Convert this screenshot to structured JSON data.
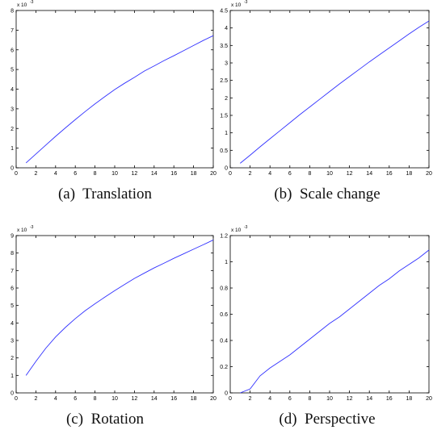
{
  "colors": {
    "line": "#3030ff",
    "axis": "#000000",
    "background": "#ffffff"
  },
  "chart_data": [
    {
      "type": "line",
      "caption": "(a)  Translation",
      "exponent_label": "x 10",
      "exponent_power": "-3",
      "xlim": [
        0,
        20
      ],
      "ylim": [
        0,
        8
      ],
      "xticks": [
        0,
        2,
        4,
        6,
        8,
        10,
        12,
        14,
        16,
        18,
        20
      ],
      "yticks": [
        0,
        1,
        2,
        3,
        4,
        5,
        6,
        7,
        8
      ],
      "grid": false,
      "series": [
        {
          "x": [
            1,
            2,
            3,
            4,
            5,
            6,
            7,
            8,
            9,
            10,
            11,
            12,
            13,
            14,
            15,
            16,
            17,
            18,
            19,
            20
          ],
          "values": [
            0.25,
            0.7,
            1.15,
            1.6,
            2.03,
            2.45,
            2.86,
            3.25,
            3.62,
            3.98,
            4.3,
            4.6,
            4.92,
            5.18,
            5.45,
            5.7,
            5.96,
            6.22,
            6.48,
            6.72
          ]
        }
      ]
    },
    {
      "type": "line",
      "caption": "(b)  Scale change",
      "exponent_label": "x 10",
      "exponent_power": "-3",
      "xlim": [
        0,
        20
      ],
      "ylim": [
        0,
        4.5
      ],
      "xticks": [
        0,
        2,
        4,
        6,
        8,
        10,
        12,
        14,
        16,
        18,
        20
      ],
      "yticks": [
        0,
        0.5,
        1,
        1.5,
        2,
        2.5,
        3,
        3.5,
        4,
        4.5
      ],
      "ytick_labels": [
        "0",
        "0.5",
        "1",
        "1.5",
        "2",
        "2.5",
        "3",
        "3.5",
        "4",
        "4.5"
      ],
      "grid": false,
      "series": [
        {
          "x": [
            1,
            2,
            3,
            4,
            5,
            6,
            7,
            8,
            9,
            10,
            11,
            12,
            13,
            14,
            15,
            16,
            17,
            18,
            19,
            20
          ],
          "values": [
            0.13,
            0.36,
            0.6,
            0.83,
            1.06,
            1.29,
            1.52,
            1.74,
            1.96,
            2.18,
            2.4,
            2.61,
            2.82,
            3.03,
            3.23,
            3.43,
            3.63,
            3.83,
            4.02,
            4.2
          ]
        }
      ]
    },
    {
      "type": "line",
      "caption": "(c)  Rotation",
      "exponent_label": "x 10",
      "exponent_power": "-3",
      "xlim": [
        0,
        20
      ],
      "ylim": [
        0,
        9
      ],
      "xticks": [
        0,
        2,
        4,
        6,
        8,
        10,
        12,
        14,
        16,
        18,
        20
      ],
      "yticks": [
        0,
        1,
        2,
        3,
        4,
        5,
        6,
        7,
        8,
        9
      ],
      "grid": false,
      "series": [
        {
          "x": [
            1,
            2,
            3,
            4,
            5,
            6,
            7,
            8,
            9,
            10,
            11,
            12,
            13,
            14,
            15,
            16,
            17,
            18,
            19,
            20
          ],
          "values": [
            1.0,
            1.8,
            2.55,
            3.2,
            3.75,
            4.25,
            4.7,
            5.1,
            5.48,
            5.85,
            6.2,
            6.55,
            6.85,
            7.15,
            7.42,
            7.7,
            7.96,
            8.22,
            8.48,
            8.75
          ]
        }
      ]
    },
    {
      "type": "line",
      "caption": "(d)  Perspective",
      "exponent_label": "x 10",
      "exponent_power": "-3",
      "xlim": [
        0,
        20
      ],
      "ylim": [
        0,
        1.2
      ],
      "xticks": [
        0,
        2,
        4,
        6,
        8,
        10,
        12,
        14,
        16,
        18,
        20
      ],
      "yticks": [
        0,
        0.2,
        0.4,
        0.6,
        0.8,
        1,
        1.2
      ],
      "ytick_labels": [
        "0",
        "0.2",
        "0.4",
        "0.6",
        "0.8",
        "1",
        "1.2"
      ],
      "grid": false,
      "series": [
        {
          "x": [
            1,
            2,
            2.5,
            3,
            4,
            5,
            6,
            7,
            8,
            9,
            10,
            11,
            12,
            13,
            14,
            15,
            16,
            17,
            18,
            19,
            20
          ],
          "values": [
            0.0,
            0.03,
            0.08,
            0.13,
            0.19,
            0.24,
            0.29,
            0.35,
            0.41,
            0.47,
            0.53,
            0.58,
            0.64,
            0.7,
            0.76,
            0.82,
            0.87,
            0.93,
            0.98,
            1.03,
            1.09
          ]
        }
      ]
    }
  ]
}
